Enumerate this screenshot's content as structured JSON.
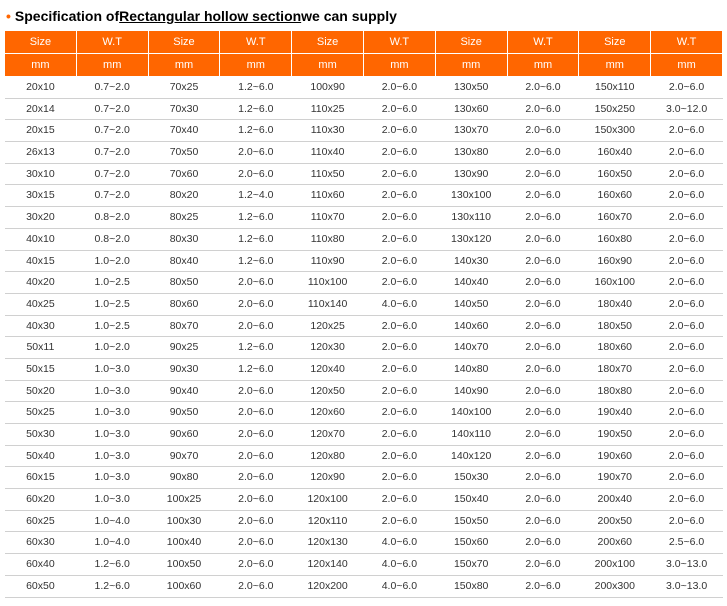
{
  "title": {
    "bullet": "•",
    "prefix": "Specification of ",
    "underline": "Rectangular hollow section",
    "suffix": "we can supply"
  },
  "table": {
    "columns": [
      "Size",
      "W.T",
      "Size",
      "W.T",
      "Size",
      "W.T",
      "Size",
      "W.T",
      "Size",
      "W.T"
    ],
    "units": [
      "mm",
      "mm",
      "mm",
      "mm",
      "mm",
      "mm",
      "mm",
      "mm",
      "mm",
      "mm"
    ],
    "rows": [
      [
        "20x10",
        "0.7~2.0",
        "70x25",
        "1.2~6.0",
        "100x90",
        "2.0~6.0",
        "130x50",
        "2.0~6.0",
        "150x110",
        "2.0~6.0"
      ],
      [
        "20x14",
        "0.7~2.0",
        "70x30",
        "1.2~6.0",
        "110x25",
        "2.0~6.0",
        "130x60",
        "2.0~6.0",
        "150x250",
        "3.0~12.0"
      ],
      [
        "20x15",
        "0.7~2.0",
        "70x40",
        "1.2~6.0",
        "110x30",
        "2.0~6.0",
        "130x70",
        "2.0~6.0",
        "150x300",
        "2.0~6.0"
      ],
      [
        "26x13",
        "0.7~2.0",
        "70x50",
        "2.0~6.0",
        "110x40",
        "2.0~6.0",
        "130x80",
        "2.0~6.0",
        "160x40",
        "2.0~6.0"
      ],
      [
        "30x10",
        "0.7~2.0",
        "70x60",
        "2.0~6.0",
        "110x50",
        "2.0~6.0",
        "130x90",
        "2.0~6.0",
        "160x50",
        "2.0~6.0"
      ],
      [
        "30x15",
        "0.7~2.0",
        "80x20",
        "1.2~4.0",
        "110x60",
        "2.0~6.0",
        "130x100",
        "2.0~6.0",
        "160x60",
        "2.0~6.0"
      ],
      [
        "30x20",
        "0.8~2.0",
        "80x25",
        "1.2~6.0",
        "110x70",
        "2.0~6.0",
        "130x110",
        "2.0~6.0",
        "160x70",
        "2.0~6.0"
      ],
      [
        "40x10",
        "0.8~2.0",
        "80x30",
        "1.2~6.0",
        "110x80",
        "2.0~6.0",
        "130x120",
        "2.0~6.0",
        "160x80",
        "2.0~6.0"
      ],
      [
        "40x15",
        "1.0~2.0",
        "80x40",
        "1.2~6.0",
        "110x90",
        "2.0~6.0",
        "140x30",
        "2.0~6.0",
        "160x90",
        "2.0~6.0"
      ],
      [
        "40x20",
        "1.0~2.5",
        "80x50",
        "2.0~6.0",
        "110x100",
        "2.0~6.0",
        "140x40",
        "2.0~6.0",
        "160x100",
        "2.0~6.0"
      ],
      [
        "40x25",
        "1.0~2.5",
        "80x60",
        "2.0~6.0",
        "110x140",
        "4.0~6.0",
        "140x50",
        "2.0~6.0",
        "180x40",
        "2.0~6.0"
      ],
      [
        "40x30",
        "1.0~2.5",
        "80x70",
        "2.0~6.0",
        "120x25",
        "2.0~6.0",
        "140x60",
        "2.0~6.0",
        "180x50",
        "2.0~6.0"
      ],
      [
        "50x11",
        "1.0~2.0",
        "90x25",
        "1.2~6.0",
        "120x30",
        "2.0~6.0",
        "140x70",
        "2.0~6.0",
        "180x60",
        "2.0~6.0"
      ],
      [
        "50x15",
        "1.0~3.0",
        "90x30",
        "1.2~6.0",
        "120x40",
        "2.0~6.0",
        "140x80",
        "2.0~6.0",
        "180x70",
        "2.0~6.0"
      ],
      [
        "50x20",
        "1.0~3.0",
        "90x40",
        "2.0~6.0",
        "120x50",
        "2.0~6.0",
        "140x90",
        "2.0~6.0",
        "180x80",
        "2.0~6.0"
      ],
      [
        "50x25",
        "1.0~3.0",
        "90x50",
        "2.0~6.0",
        "120x60",
        "2.0~6.0",
        "140x100",
        "2.0~6.0",
        "190x40",
        "2.0~6.0"
      ],
      [
        "50x30",
        "1.0~3.0",
        "90x60",
        "2.0~6.0",
        "120x70",
        "2.0~6.0",
        "140x110",
        "2.0~6.0",
        "190x50",
        "2.0~6.0"
      ],
      [
        "50x40",
        "1.0~3.0",
        "90x70",
        "2.0~6.0",
        "120x80",
        "2.0~6.0",
        "140x120",
        "2.0~6.0",
        "190x60",
        "2.0~6.0"
      ],
      [
        "60x15",
        "1.0~3.0",
        "90x80",
        "2.0~6.0",
        "120x90",
        "2.0~6.0",
        "150x30",
        "2.0~6.0",
        "190x70",
        "2.0~6.0"
      ],
      [
        "60x20",
        "1.0~3.0",
        "100x25",
        "2.0~6.0",
        "120x100",
        "2.0~6.0",
        "150x40",
        "2.0~6.0",
        "200x40",
        "2.0~6.0"
      ],
      [
        "60x25",
        "1.0~4.0",
        "100x30",
        "2.0~6.0",
        "120x110",
        "2.0~6.0",
        "150x50",
        "2.0~6.0",
        "200x50",
        "2.0~6.0"
      ],
      [
        "60x30",
        "1.0~4.0",
        "100x40",
        "2.0~6.0",
        "120x130",
        "4.0~6.0",
        "150x60",
        "2.0~6.0",
        "200x60",
        "2.5~6.0"
      ],
      [
        "60x40",
        "1.2~6.0",
        "100x50",
        "2.0~6.0",
        "120x140",
        "4.0~6.0",
        "150x70",
        "2.0~6.0",
        "200x100",
        "3.0~13.0"
      ],
      [
        "60x50",
        "1.2~6.0",
        "100x60",
        "2.0~6.0",
        "120x200",
        "4.0~6.0",
        "150x80",
        "2.0~6.0",
        "200x300",
        "3.0~13.0"
      ]
    ]
  }
}
